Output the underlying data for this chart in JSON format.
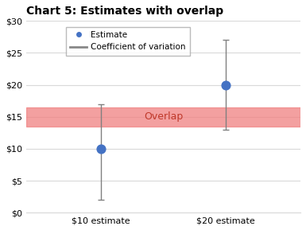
{
  "title": "Chart 5: Estimates with overlap",
  "categories": [
    "$10 estimate",
    "$20 estimate"
  ],
  "x_positions": [
    1,
    2
  ],
  "estimates": [
    10,
    20
  ],
  "error_lower": [
    8,
    7
  ],
  "error_upper": [
    7,
    7
  ],
  "overlap_ymin": 13.5,
  "overlap_ymax": 16.5,
  "overlap_label": "Overlap",
  "overlap_color": "#f08080",
  "overlap_alpha": 0.75,
  "ylim": [
    0,
    30
  ],
  "yticks": [
    0,
    5,
    10,
    15,
    20,
    25,
    30
  ],
  "ytick_labels": [
    "$0",
    "$5",
    "$10",
    "$15",
    "$20",
    "$25",
    "$30"
  ],
  "dot_color": "#4472c4",
  "dot_size": 60,
  "errorbar_color": "#808080",
  "errorbar_linewidth": 1.0,
  "errorbar_capsize": 3,
  "legend_estimate_label": "Estimate",
  "legend_cv_label": "Coefficient of variation",
  "title_fontsize": 10,
  "tick_fontsize": 8,
  "background_color": "#ffffff",
  "grid_color": "#d9d9d9",
  "xlim": [
    0.4,
    2.6
  ]
}
